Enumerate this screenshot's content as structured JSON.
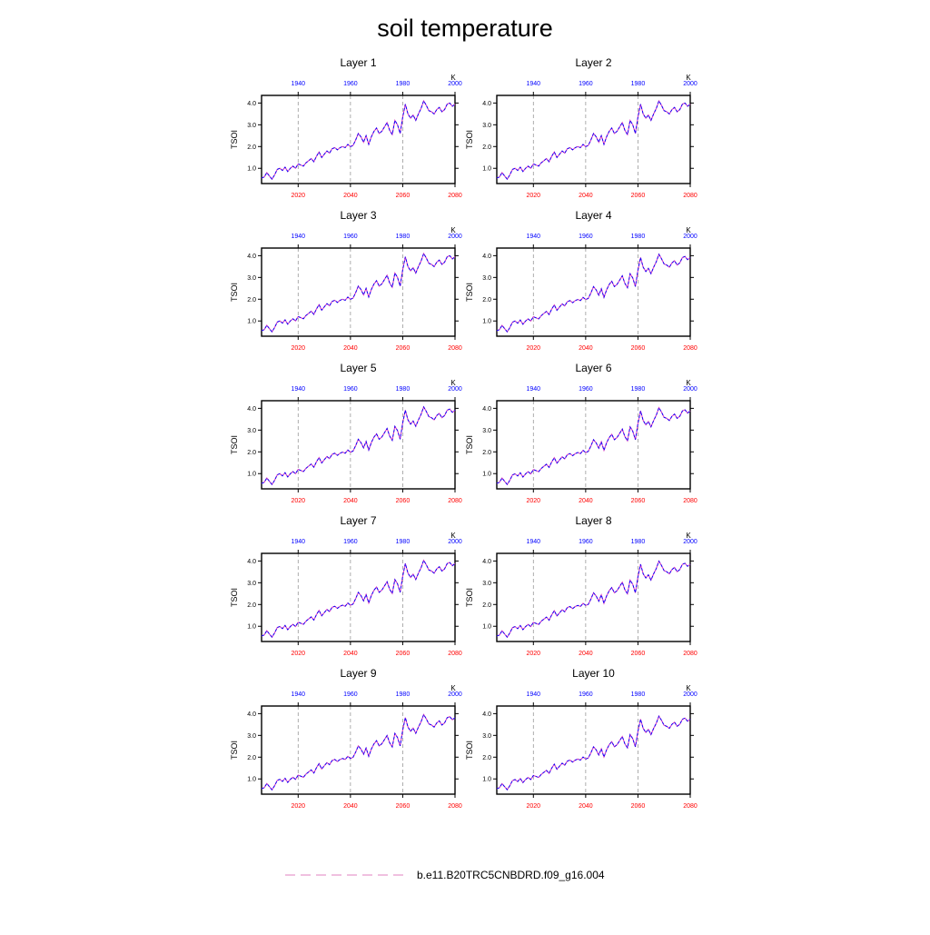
{
  "title": "soil temperature",
  "chart_data": {
    "type": "line",
    "title": "soil temperature",
    "ylabel": "TSOI",
    "units_label": "K",
    "x_bottom": {
      "ticks": [
        2020,
        2040,
        2060,
        2080
      ],
      "range": [
        2006,
        2080
      ],
      "color": "#ff0000"
    },
    "x_top": {
      "ticks": [
        1940,
        1960,
        1980,
        2000
      ],
      "range": [
        1926,
        2000
      ],
      "color": "#0000ff"
    },
    "y_ticks": [
      "1.0",
      "2.0",
      "3.0",
      "4.0"
    ],
    "ylim": [
      0.3,
      4.35
    ],
    "grid": "vertical dashed gray at 2020, 2040, 2060",
    "legend": {
      "placement": "bottom-center",
      "label": "b.e11.B20TRC5CNBDRD.f09_g16.004",
      "color": "#e080c0",
      "style": "dashed"
    },
    "series_colors": [
      "#0000ff",
      "#e040c0"
    ],
    "panels": [
      {
        "title": "Layer 1",
        "scale": 1.0
      },
      {
        "title": "Layer 2",
        "scale": 1.0
      },
      {
        "title": "Layer 3",
        "scale": 1.0
      },
      {
        "title": "Layer 4",
        "scale": 0.99
      },
      {
        "title": "Layer 5",
        "scale": 0.99
      },
      {
        "title": "Layer 6",
        "scale": 0.98
      },
      {
        "title": "Layer 7",
        "scale": 0.98
      },
      {
        "title": "Layer 8",
        "scale": 0.97
      },
      {
        "title": "Layer 9",
        "scale": 0.96
      },
      {
        "title": "Layer 10",
        "scale": 0.94
      }
    ],
    "series": [
      {
        "x": [
          2006,
          2007,
          2008,
          2009,
          2010,
          2011,
          2012,
          2013,
          2014,
          2015,
          2016,
          2017,
          2018,
          2019,
          2020,
          2021,
          2022,
          2023,
          2024,
          2025,
          2026,
          2027,
          2028,
          2029,
          2030,
          2031,
          2032,
          2033,
          2034,
          2035,
          2036,
          2037,
          2038,
          2039,
          2040,
          2041,
          2042,
          2043,
          2044,
          2045,
          2046,
          2047,
          2048,
          2049,
          2050,
          2051,
          2052,
          2053,
          2054,
          2055,
          2056,
          2057,
          2058,
          2059,
          2060,
          2061,
          2062,
          2063,
          2064,
          2065,
          2066,
          2067,
          2068,
          2069,
          2070,
          2071,
          2072,
          2073,
          2074,
          2075,
          2076,
          2077,
          2078,
          2079,
          2080
        ],
        "y": [
          0.55,
          0.6,
          0.8,
          0.65,
          0.5,
          0.7,
          0.95,
          1.0,
          0.9,
          1.05,
          0.85,
          1.0,
          1.1,
          1.0,
          1.2,
          1.15,
          1.1,
          1.25,
          1.35,
          1.45,
          1.3,
          1.55,
          1.75,
          1.5,
          1.65,
          1.8,
          1.7,
          1.9,
          1.95,
          1.85,
          1.95,
          2.0,
          1.95,
          2.1,
          2.0,
          2.05,
          2.3,
          2.6,
          2.45,
          2.2,
          2.5,
          2.1,
          2.45,
          2.7,
          2.85,
          2.6,
          2.7,
          2.9,
          3.1,
          2.75,
          2.55,
          3.2,
          3.0,
          2.6,
          3.35,
          3.95,
          3.5,
          3.3,
          3.45,
          3.2,
          3.5,
          3.75,
          4.1,
          3.9,
          3.65,
          3.6,
          3.5,
          3.7,
          3.8,
          3.6,
          3.7,
          3.95,
          4.0,
          3.85,
          3.95
        ]
      }
    ]
  }
}
